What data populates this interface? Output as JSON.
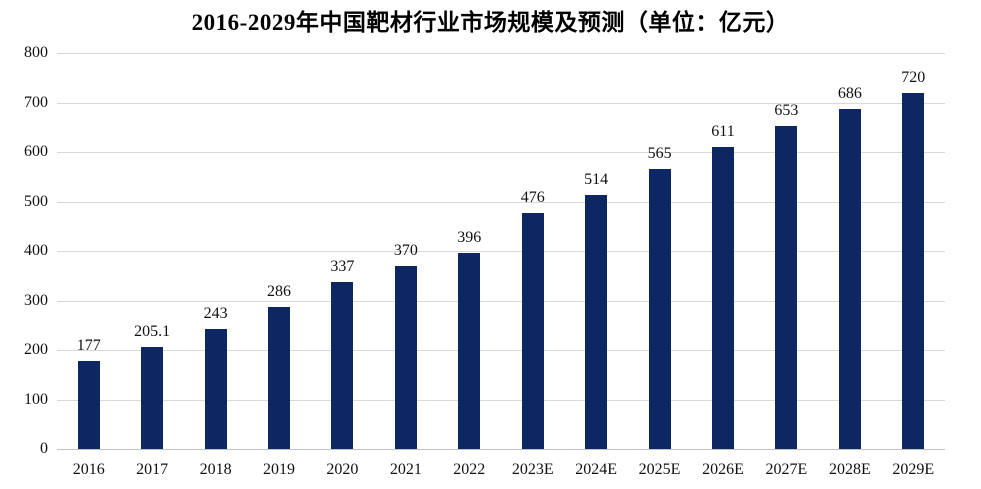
{
  "chart_data": {
    "type": "bar",
    "title": "2016-2029年中国靶材行业市场规模及预测（单位：亿元）",
    "categories": [
      "2016",
      "2017",
      "2018",
      "2019",
      "2020",
      "2021",
      "2022",
      "2023E",
      "2024E",
      "2025E",
      "2026E",
      "2027E",
      "2028E",
      "2029E"
    ],
    "values": [
      177,
      205.1,
      243,
      286,
      337,
      370,
      396,
      476,
      514,
      565,
      611,
      653,
      686,
      720
    ],
    "value_labels": [
      "177",
      "205.1",
      "243",
      "286",
      "337",
      "370",
      "396",
      "476",
      "514",
      "565",
      "611",
      "653",
      "686",
      "720"
    ],
    "xlabel": "",
    "ylabel": "",
    "ylim": [
      0,
      800
    ],
    "yticks": [
      "0",
      "100",
      "200",
      "300",
      "400",
      "500",
      "600",
      "700",
      "800"
    ],
    "ytick_step": 100,
    "grid": "horizontal",
    "legend": "none",
    "colors": {
      "bar": "#0d2763",
      "gridline": "#d9d9d9",
      "axis_line": "#c2c2c2",
      "text": "#111111"
    }
  }
}
